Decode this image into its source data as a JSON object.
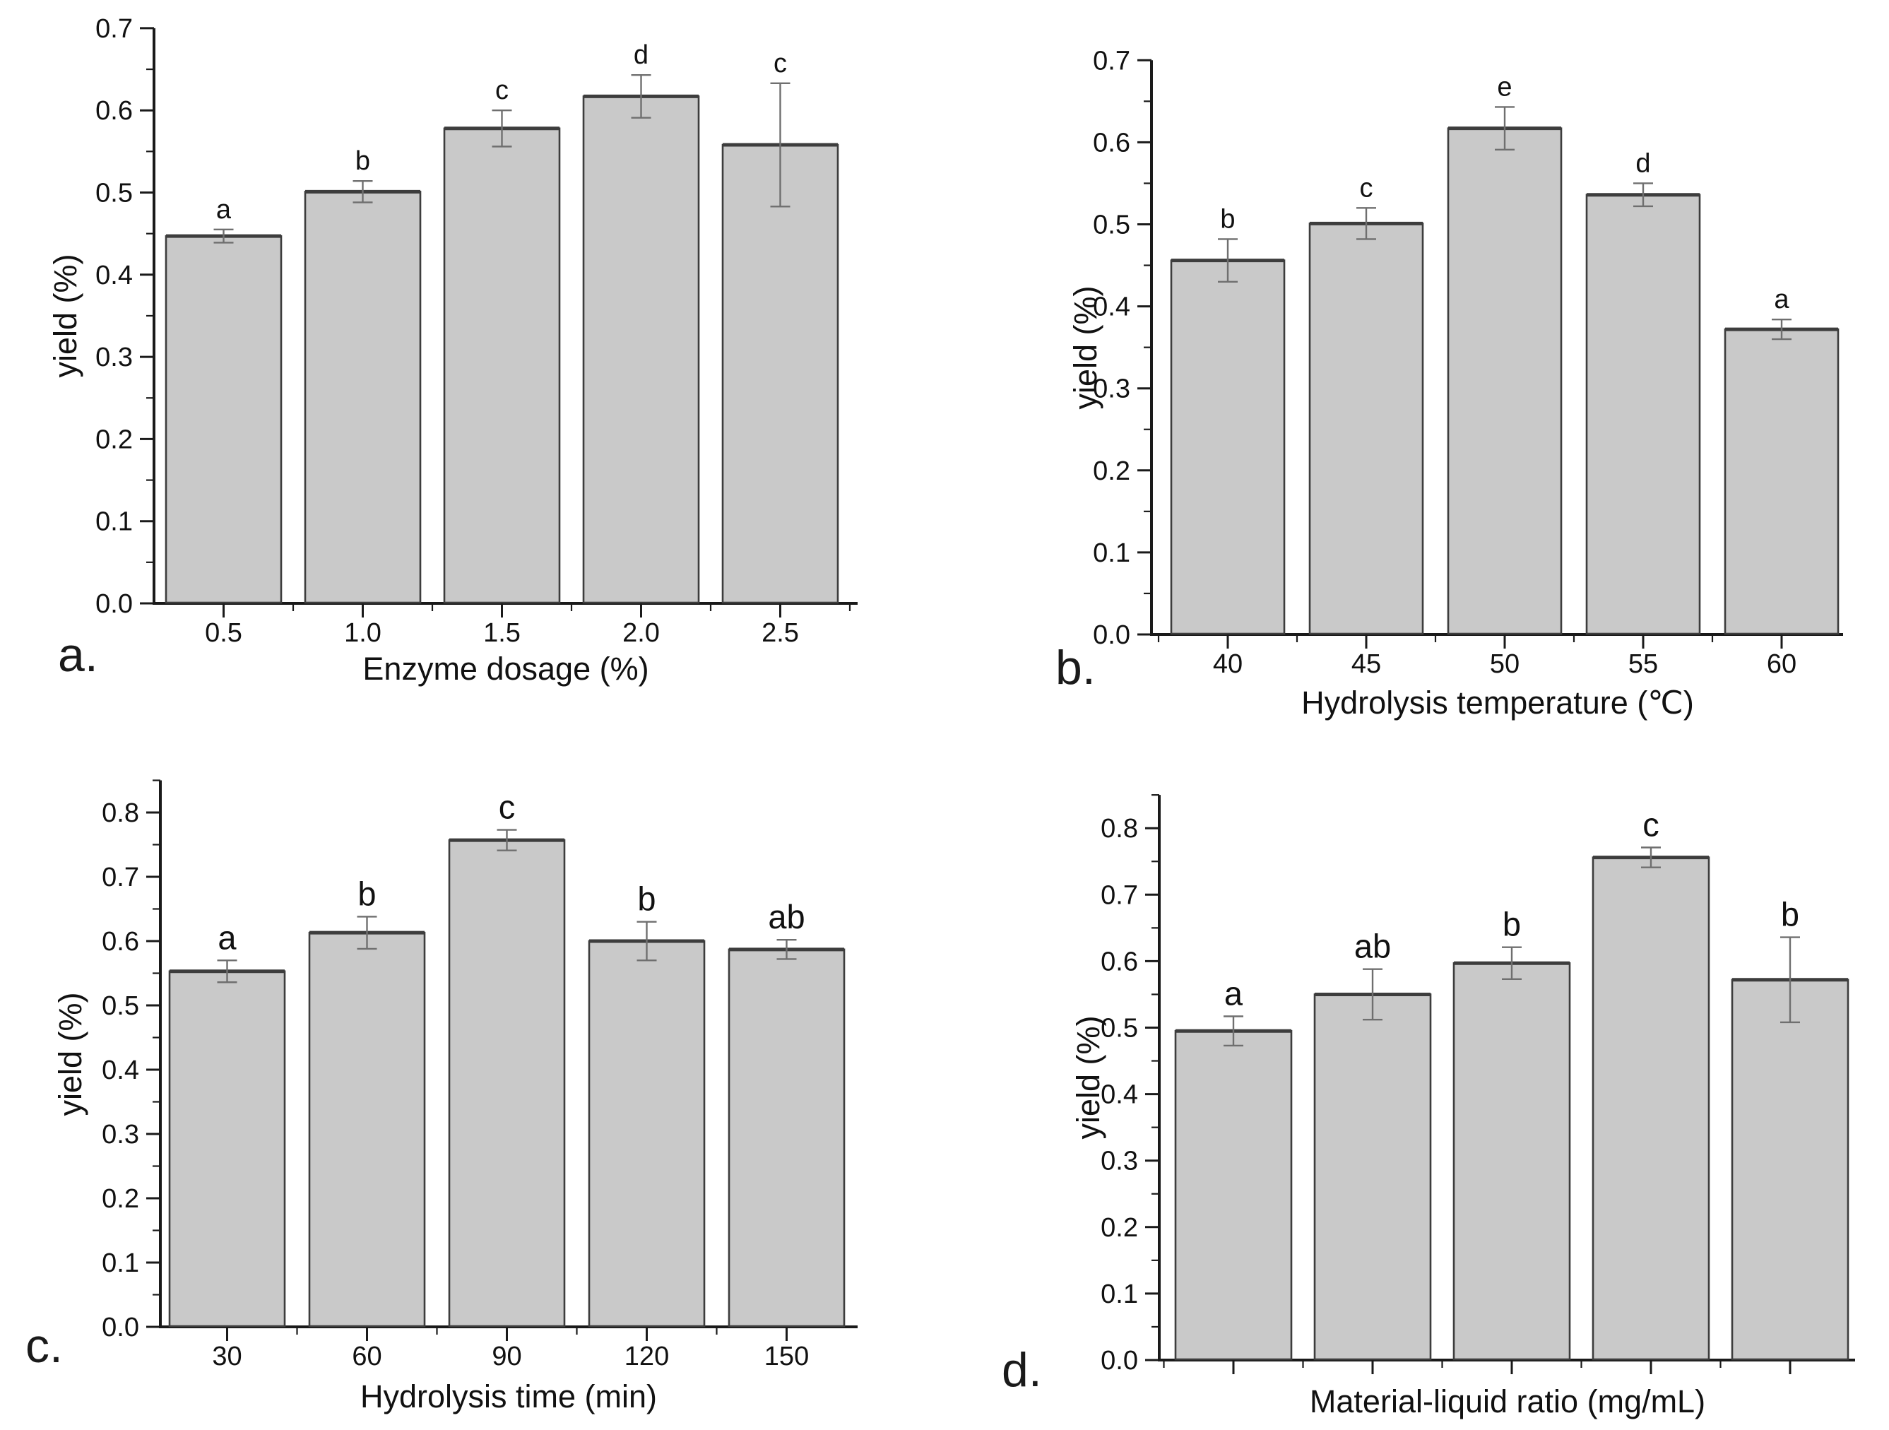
{
  "page": {
    "background_color": "#ffffff",
    "figure_type": "four-panel bar chart figure with error bars and significance letters"
  },
  "colors": {
    "bar_fill": "#c9c9c9",
    "bar_edge": "#3d3d3d",
    "error_bar": "#6f6f6f",
    "axis": "#1a1a1a",
    "text": "#111111"
  },
  "chart_data": [
    {
      "id": "a",
      "type": "bar",
      "panel_label": "a.",
      "xlabel": "Enzyme dosage (%)",
      "ylabel": "yield (%)",
      "categories": [
        "0.5",
        "1.0",
        "1.5",
        "2.0",
        "2.5"
      ],
      "values": [
        0.447,
        0.501,
        0.578,
        0.617,
        0.558
      ],
      "errors": [
        0.008,
        0.013,
        0.022,
        0.026,
        0.075
      ],
      "sig_letters": [
        "a",
        "b",
        "c",
        "d",
        "c"
      ],
      "ylim": [
        0.0,
        0.7
      ],
      "ytick_step": 0.1,
      "yminor_step": 0.05,
      "ytick_labels": [
        "0.0",
        "0.1",
        "0.2",
        "0.3",
        "0.4",
        "0.5",
        "0.6",
        "0.7"
      ],
      "show_x_tick_labels": true,
      "grid": false,
      "legend": null
    },
    {
      "id": "b",
      "type": "bar",
      "panel_label": "b.",
      "xlabel": "Hydrolysis temperature (℃)",
      "ylabel": "yield (%)",
      "categories": [
        "40",
        "45",
        "50",
        "55",
        "60"
      ],
      "values": [
        0.456,
        0.501,
        0.617,
        0.536,
        0.372
      ],
      "errors": [
        0.026,
        0.019,
        0.026,
        0.014,
        0.012
      ],
      "sig_letters": [
        "b",
        "c",
        "e",
        "d",
        "a"
      ],
      "ylim": [
        0.0,
        0.7
      ],
      "ytick_step": 0.1,
      "yminor_step": 0.05,
      "ytick_labels": [
        "0.0",
        "0.1",
        "0.2",
        "0.3",
        "0.4",
        "0.5",
        "0.6",
        "0.7"
      ],
      "show_x_tick_labels": true,
      "grid": false,
      "legend": null
    },
    {
      "id": "c",
      "type": "bar",
      "panel_label": "c.",
      "xlabel": "Hydrolysis time (min)",
      "ylabel": "yield (%)",
      "categories": [
        "30",
        "60",
        "90",
        "120",
        "150"
      ],
      "values": [
        0.553,
        0.613,
        0.757,
        0.6,
        0.587
      ],
      "errors": [
        0.017,
        0.025,
        0.016,
        0.03,
        0.015
      ],
      "sig_letters": [
        "a",
        "b",
        "c",
        "b",
        "ab"
      ],
      "ylim": [
        0.0,
        0.85
      ],
      "ytick_step": 0.1,
      "yminor_step": 0.05,
      "ytick_labels": [
        "0.0",
        "0.1",
        "0.2",
        "0.3",
        "0.4",
        "0.5",
        "0.6",
        "0.7",
        "0.8"
      ],
      "show_x_tick_labels": true,
      "grid": false,
      "legend": null
    },
    {
      "id": "d",
      "type": "bar",
      "panel_label": "d.",
      "xlabel": "Material-liquid ratio (mg/mL)",
      "ylabel": "yield (%)",
      "categories": [
        "",
        "",
        "",
        "",
        ""
      ],
      "values": [
        0.495,
        0.55,
        0.597,
        0.756,
        0.572
      ],
      "errors": [
        0.022,
        0.038,
        0.024,
        0.015,
        0.064
      ],
      "sig_letters": [
        "a",
        "ab",
        "b",
        "c",
        "b"
      ],
      "ylim": [
        0.0,
        0.85
      ],
      "ytick_step": 0.1,
      "yminor_step": 0.05,
      "ytick_labels": [
        "0.0",
        "0.1",
        "0.2",
        "0.3",
        "0.4",
        "0.5",
        "0.6",
        "0.7",
        "0.8"
      ],
      "show_x_tick_labels": false,
      "grid": false,
      "legend": null
    }
  ]
}
